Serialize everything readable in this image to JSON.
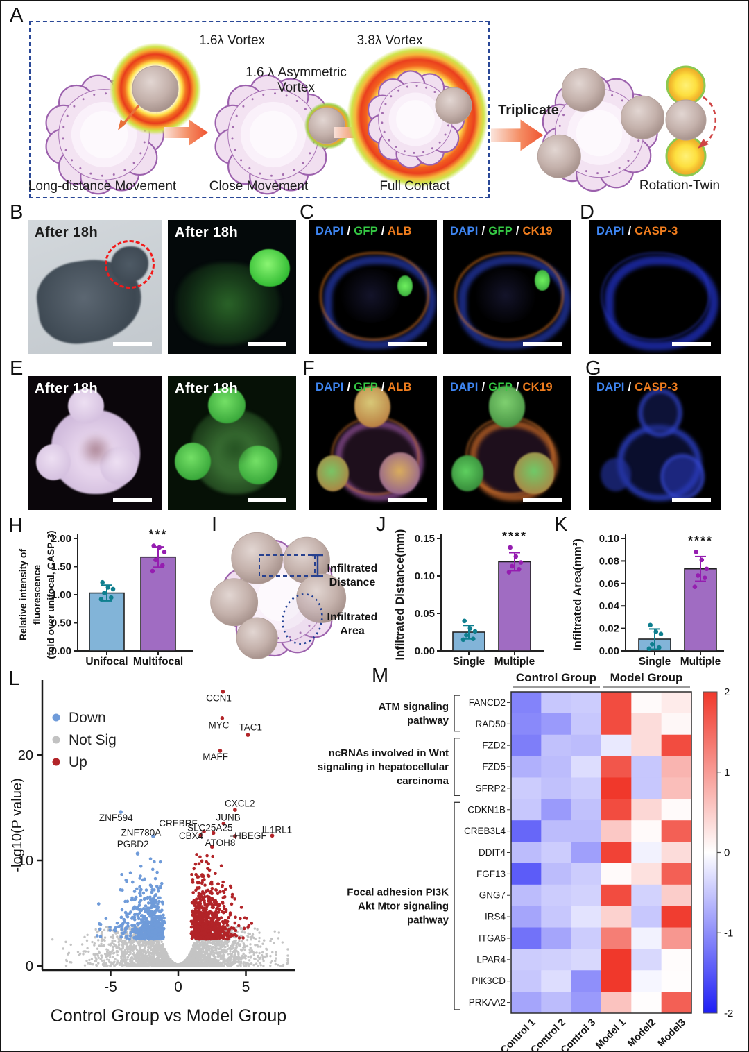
{
  "letters": {
    "A": "A",
    "B": "B",
    "C": "C",
    "D": "D",
    "E": "E",
    "F": "F",
    "G": "G",
    "H": "H",
    "I": "I",
    "J": "J",
    "K": "K",
    "L": "L",
    "M": "M"
  },
  "panelA": {
    "vortex1": "1.6λ Vortex",
    "vortex2": "3.8λ Vortex",
    "asym1": "1.6 λ Asymmetric",
    "asym2": "Vortex",
    "stage1": "Long-distance Movement",
    "stage2": "Close Movement",
    "stage3": "Full Contact",
    "triplicate": "Triplicate",
    "rotation_twin": "Rotation-Twin"
  },
  "panelB": {
    "label1": "After 18h",
    "label2": "After 18h"
  },
  "panelE": {
    "label1": "After 18h",
    "label2": "After 18h"
  },
  "fluoro": {
    "alb": [
      {
        "t": "DAPI",
        "c": "#3f86f2"
      },
      {
        "t": " / ",
        "c": "#ffffff"
      },
      {
        "t": "GFP",
        "c": "#35c944"
      },
      {
        "t": " / ",
        "c": "#ffffff"
      },
      {
        "t": "ALB",
        "c": "#ef7d1e"
      }
    ],
    "ck19": [
      {
        "t": "DAPI",
        "c": "#3f86f2"
      },
      {
        "t": " / ",
        "c": "#ffffff"
      },
      {
        "t": "GFP",
        "c": "#35c944"
      },
      {
        "t": " / ",
        "c": "#ffffff"
      },
      {
        "t": "CK19",
        "c": "#ef7d1e"
      }
    ],
    "casp3": [
      {
        "t": "DAPI",
        "c": "#3f86f2"
      },
      {
        "t": " / ",
        "c": "#ffffff"
      },
      {
        "t": "CASP-3",
        "c": "#ef7d1e"
      }
    ]
  },
  "panelI": {
    "distance_l1": "Infiltrated",
    "distance_l2": "Distance",
    "area_l1": "Infiltrated",
    "area_l2": "Area"
  },
  "chart_data": [
    {
      "id": "H",
      "type": "bar",
      "ylabel_lines": [
        "Relative intensity of",
        "fluorescence",
        "(fold over unifocal,  CASP-3)"
      ],
      "categories": [
        "Unifocal",
        "Multifocal"
      ],
      "values": [
        1.03,
        1.67
      ],
      "errors": [
        0.14,
        0.18
      ],
      "points": [
        [
          0.92,
          0.95,
          1.03,
          1.1,
          1.13,
          1.22
        ],
        [
          1.42,
          1.52,
          1.62,
          1.76,
          1.84,
          1.87
        ]
      ],
      "significance": "***",
      "ylim": [
        0,
        2
      ],
      "yticks": [
        0,
        0.5,
        1,
        1.5,
        2
      ],
      "ytick_labels": [
        "0.00",
        "0.50",
        "1.00",
        "1.50",
        "2.00"
      ],
      "bar_fill": [
        "#82b4d8",
        "#a06cc2"
      ],
      "bar_stroke": "#222222",
      "point_colors": [
        "#0f7f8f",
        "#951db0"
      ]
    },
    {
      "id": "J",
      "type": "bar",
      "ylabel_lines": [
        "Infiltrated Distance(mm)"
      ],
      "categories": [
        "Single",
        "Multiple"
      ],
      "values": [
        0.025,
        0.119
      ],
      "errors": [
        0.009,
        0.012
      ],
      "points": [
        [
          0.015,
          0.016,
          0.021,
          0.026,
          0.03,
          0.04
        ],
        [
          0.105,
          0.109,
          0.113,
          0.118,
          0.126,
          0.138
        ]
      ],
      "significance": "****",
      "ylim": [
        0,
        0.15
      ],
      "yticks": [
        0,
        0.05,
        0.1,
        0.15
      ],
      "ytick_labels": [
        "0.00",
        "0.05",
        "0.10",
        "0.15"
      ],
      "bar_fill": [
        "#82b4d8",
        "#a06cc2"
      ],
      "bar_stroke": "#222222",
      "point_colors": [
        "#0f7f8f",
        "#951db0"
      ]
    },
    {
      "id": "K",
      "type": "bar",
      "ylabel_lines": [
        "Infiltrated Area(mm²)"
      ],
      "categories": [
        "Single",
        "Multiple"
      ],
      "values": [
        0.0105,
        0.073
      ],
      "errors": [
        0.009,
        0.011
      ],
      "points": [
        [
          0.002,
          0.003,
          0.006,
          0.015,
          0.017,
          0.023
        ],
        [
          0.057,
          0.065,
          0.067,
          0.073,
          0.081,
          0.088
        ]
      ],
      "significance": "****",
      "ylim": [
        0,
        0.1
      ],
      "yticks": [
        0,
        0.02,
        0.04,
        0.06,
        0.08,
        0.1
      ],
      "ytick_labels": [
        "0.00",
        "0.02",
        "0.04",
        "0.06",
        "0.08",
        "0.10"
      ],
      "bar_fill": [
        "#82b4d8",
        "#a06cc2"
      ],
      "bar_stroke": "#222222",
      "point_colors": [
        "#0f7f8f",
        "#951db0"
      ]
    },
    {
      "id": "L",
      "type": "scatter",
      "xlabel": "Control Group vs Model Group",
      "ylabel": "-log10(P value)",
      "xlim": [
        -9.8,
        8.4
      ],
      "ylim": [
        -0.4,
        26.5
      ],
      "xticks": [
        -5,
        0,
        5
      ],
      "yticks": [
        0,
        10,
        20
      ],
      "legend": [
        {
          "label": "Down",
          "color": "#6f9bd9"
        },
        {
          "label": "Not Sig",
          "color": "#c2c2c2"
        },
        {
          "label": "Up",
          "color": "#b22428"
        }
      ],
      "labeled_points": [
        {
          "gene": "CCN1",
          "x": 3.3,
          "y": 26.0,
          "cls": "up",
          "lx": 3.0,
          "ly": 25.35
        },
        {
          "gene": "MYC",
          "x": 3.25,
          "y": 23.5,
          "cls": "up",
          "lx": 3.0,
          "ly": 22.8
        },
        {
          "gene": "TAC1",
          "x": 5.15,
          "y": 21.9,
          "cls": "up",
          "lx": 5.35,
          "ly": 22.6
        },
        {
          "gene": "MAFF",
          "x": 3.1,
          "y": 20.4,
          "cls": "up",
          "lx": 2.75,
          "ly": 19.8
        },
        {
          "gene": "CXCL2",
          "x": 4.2,
          "y": 14.8,
          "cls": "up",
          "lx": 4.55,
          "ly": 15.35
        },
        {
          "gene": "JUNB",
          "x": 3.35,
          "y": 13.5,
          "cls": "up",
          "lx": 3.7,
          "ly": 14.05
        },
        {
          "gene": "ZNF594",
          "x": -4.25,
          "y": 14.6,
          "cls": "down",
          "lx": -4.6,
          "ly": 14.0
        },
        {
          "gene": "CREBRF",
          "x": 1.9,
          "y": 12.75,
          "cls": "up",
          "lx": 0.0,
          "ly": 13.5,
          "line": true
        },
        {
          "gene": "SLC25A25",
          "x": 2.6,
          "y": 12.6,
          "cls": "up",
          "lx": 2.35,
          "ly": 13.05
        },
        {
          "gene": "ZNF780A",
          "x": -1.85,
          "y": 12.3,
          "cls": "down",
          "lx": -2.75,
          "ly": 12.6
        },
        {
          "gene": "CBX4",
          "x": 1.65,
          "y": 12.4,
          "cls": "up",
          "lx": 0.95,
          "ly": 12.3
        },
        {
          "gene": "ATOH8",
          "x": 2.5,
          "y": 11.3,
          "cls": "up",
          "lx": 3.1,
          "ly": 11.65
        },
        {
          "gene": "HBEGF",
          "x": 4.2,
          "y": 12.3,
          "cls": "up",
          "lx": 5.35,
          "ly": 12.3,
          "line": true
        },
        {
          "gene": "IL1RL1",
          "x": 6.95,
          "y": 12.35,
          "cls": "up",
          "lx": 7.3,
          "ly": 12.85
        },
        {
          "gene": "PGBD2",
          "x": -3.0,
          "y": 10.65,
          "cls": "down",
          "lx": -3.35,
          "ly": 11.5
        }
      ],
      "cloud": {
        "seed": 7,
        "gray_n": 3200,
        "blue_n": 520,
        "red_n": 680
      }
    },
    {
      "id": "M",
      "type": "heatmap",
      "col_group_labels": [
        "Control Group",
        "Model Group"
      ],
      "columns": [
        "Control 1",
        "Control 2",
        "Control 3",
        "Model 1",
        "Model2",
        "Model3"
      ],
      "rows": [
        "FANCD2",
        "RAD50",
        "FZD2",
        "FZD5",
        "SFRP2",
        "CDKN1B",
        "CREB3L4",
        "DDIT4",
        "FGF13",
        "GNG7",
        "IRS4",
        "ITGA6",
        "LPAR4",
        "PIK3CD",
        "PRKAA2"
      ],
      "row_groups": [
        {
          "lines": [
            "ATM signaling",
            "pathway"
          ],
          "from": 0,
          "to": 1
        },
        {
          "lines": [
            "ncRNAs involved in Wnt",
            "signaling in hepatocellular",
            "carcinoma"
          ],
          "from": 2,
          "to": 4
        },
        {
          "lines": [
            "Focal adhesion PI3K",
            "Akt Mtor signaling",
            "pathway"
          ],
          "from": 5,
          "to": 14
        }
      ],
      "values": [
        [
          -1.1,
          -0.5,
          -0.45,
          1.8,
          0.05,
          0.2
        ],
        [
          -1.05,
          -0.9,
          -0.5,
          1.8,
          0.35,
          0.08
        ],
        [
          -1.15,
          -0.55,
          -0.6,
          -0.2,
          0.35,
          1.8
        ],
        [
          -0.7,
          -0.6,
          -0.3,
          1.7,
          -0.5,
          0.75
        ],
        [
          -0.45,
          -0.55,
          -0.45,
          2.0,
          -0.5,
          0.65
        ],
        [
          -0.5,
          -0.9,
          -0.55,
          1.8,
          0.4,
          0.05
        ],
        [
          -1.35,
          -0.6,
          -0.6,
          0.55,
          0.05,
          1.6
        ],
        [
          -0.6,
          -0.45,
          -0.85,
          1.9,
          -0.12,
          0.35
        ],
        [
          -1.45,
          -0.6,
          -0.45,
          0.05,
          0.3,
          1.6
        ],
        [
          -0.6,
          -0.45,
          -0.4,
          1.8,
          -0.4,
          0.5
        ],
        [
          -0.8,
          -0.5,
          -0.25,
          0.45,
          -0.5,
          1.95
        ],
        [
          -1.25,
          -0.8,
          -0.45,
          1.3,
          -0.12,
          1.05
        ],
        [
          -0.45,
          -0.42,
          -0.35,
          2.0,
          -0.35,
          0.03
        ],
        [
          -0.5,
          -0.3,
          -1.0,
          2.0,
          -0.08,
          0.02
        ],
        [
          -0.8,
          -0.6,
          -0.9,
          0.6,
          0.02,
          1.6
        ]
      ],
      "zlim": [
        -2,
        2
      ],
      "colorbar_ticks": [
        "2",
        "1",
        "0",
        "-1",
        "-2"
      ],
      "color_pos": "#f0382b",
      "color_neg": "#1e1ef5",
      "color_mid": "#ffffff"
    }
  ]
}
